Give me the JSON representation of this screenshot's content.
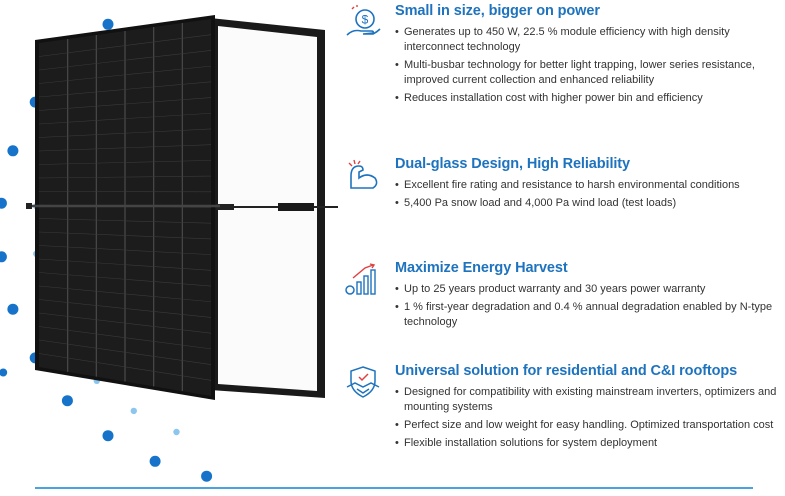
{
  "colors": {
    "accent": "#1e73be",
    "dot_dark": "#1673c9",
    "dot_light": "#8cc6ee",
    "rule": "#4aa3df"
  },
  "illustration": {
    "description_icon": "solar-panel-front-back-icon"
  },
  "features": [
    {
      "icon": "dollar-hand-icon",
      "title": "Small in size, bigger on power",
      "bullets": [
        "Generates up to 450 W, 22.5 % module efficiency with high density interconnect technology",
        "Multi-busbar technology for better light trapping, lower series resistance, improved current collection and enhanced reliability",
        "Reduces installation cost with higher power bin and efficiency"
      ]
    },
    {
      "icon": "flexed-arm-icon",
      "title": "Dual-glass Design, High Reliability",
      "bullets": [
        "Excellent fire rating  and resistance to harsh environmental conditions",
        "5,400 Pa snow load and 4,000 Pa wind load (test loads)"
      ]
    },
    {
      "icon": "bar-chart-growth-icon",
      "title": "Maximize Energy Harvest",
      "bullets": [
        "Up to 25 years product warranty and 30 years power warranty",
        "1 % first-year degradation and 0.4 % annual degradation enabled by N-type technology"
      ]
    },
    {
      "icon": "handshake-shield-icon",
      "title": "Universal solution for residential and C&I rooftops",
      "bullets": [
        "Designed for compatibility with existing mainstream inverters, optimizers and mounting systems",
        "Perfect size and low weight for easy handling. Optimized transportation cost",
        "Flexible installation solutions for system deployment"
      ]
    }
  ]
}
